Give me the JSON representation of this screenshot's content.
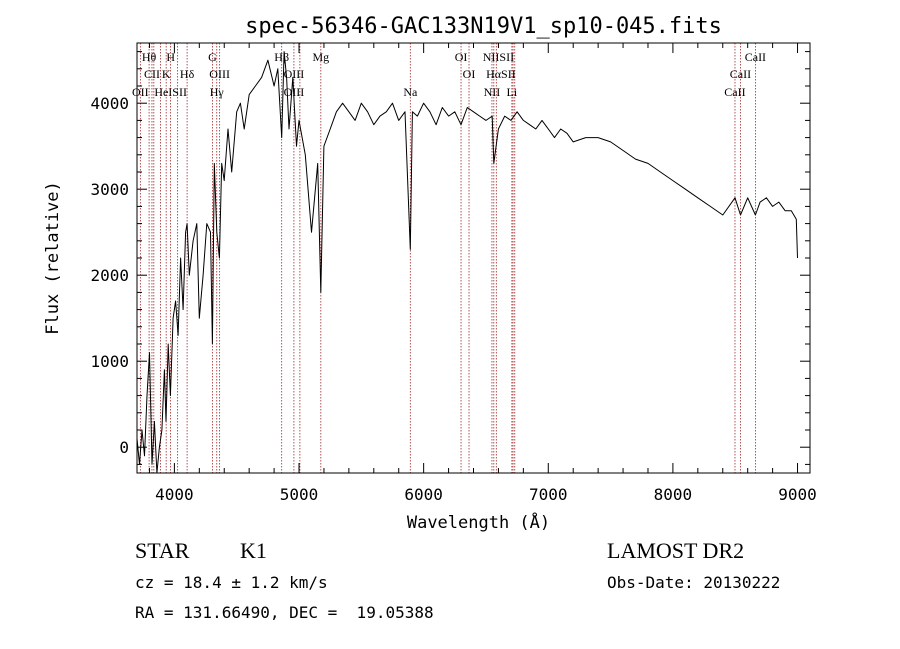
{
  "chart_data": {
    "type": "line",
    "title": "spec-56346-GAC133N19V1_sp10-045.fits",
    "xlabel": "Wavelength (Å)",
    "ylabel": "Flux (relative)",
    "xlim": [
      3700,
      9100
    ],
    "ylim": [
      -300,
      4700
    ],
    "x_ticks": [
      4000,
      5000,
      6000,
      7000,
      8000,
      9000
    ],
    "y_ticks": [
      0,
      1000,
      2000,
      3000,
      4000
    ],
    "grid": false,
    "series": [
      {
        "x": [
          3700,
          3720,
          3740,
          3760,
          3780,
          3800,
          3820,
          3840,
          3860,
          3880,
          3900,
          3920,
          3933,
          3950,
          3968,
          3990,
          4010,
          4030,
          4050,
          4070,
          4090,
          4102,
          4120,
          4150,
          4180,
          4200,
          4230,
          4260,
          4290,
          4305,
          4320,
          4340,
          4361,
          4380,
          4400,
          4430,
          4460,
          4500,
          4530,
          4560,
          4600,
          4650,
          4700,
          4750,
          4800,
          4830,
          4861,
          4880,
          4900,
          4920,
          4950,
          4980,
          5000,
          5050,
          5100,
          5150,
          5175,
          5200,
          5250,
          5300,
          5350,
          5400,
          5450,
          5500,
          5550,
          5600,
          5650,
          5700,
          5750,
          5800,
          5850,
          5893,
          5910,
          5950,
          6000,
          6050,
          6100,
          6150,
          6200,
          6250,
          6300,
          6350,
          6400,
          6450,
          6500,
          6550,
          6563,
          6600,
          6650,
          6700,
          6750,
          6800,
          6850,
          6900,
          6950,
          7000,
          7050,
          7100,
          7150,
          7200,
          7300,
          7400,
          7500,
          7600,
          7700,
          7800,
          7900,
          8000,
          8100,
          8200,
          8300,
          8400,
          8498,
          8542,
          8600,
          8662,
          8700,
          8750,
          8800,
          8850,
          8900,
          8950,
          8990,
          9000
        ],
        "y": [
          100,
          -200,
          200,
          -100,
          600,
          1100,
          -200,
          300,
          -300,
          0,
          200,
          900,
          300,
          1200,
          600,
          1500,
          1700,
          1300,
          2200,
          1600,
          2500,
          2600,
          2000,
          2400,
          2600,
          1500,
          2000,
          2600,
          2500,
          1200,
          3300,
          2500,
          2200,
          3300,
          3100,
          3700,
          3200,
          3900,
          4000,
          3700,
          4100,
          4200,
          4300,
          4500,
          4200,
          4400,
          3600,
          4600,
          4300,
          3700,
          4300,
          3500,
          3800,
          3400,
          2500,
          3300,
          1800,
          3500,
          3700,
          3900,
          4000,
          3900,
          3800,
          4000,
          3900,
          3750,
          3850,
          3900,
          4000,
          3800,
          3900,
          2300,
          3900,
          3850,
          4000,
          3900,
          3750,
          3950,
          3850,
          3900,
          3750,
          3950,
          3900,
          3850,
          3800,
          3850,
          3300,
          3700,
          3850,
          3800,
          3900,
          3800,
          3750,
          3700,
          3800,
          3700,
          3600,
          3700,
          3650,
          3550,
          3600,
          3600,
          3550,
          3450,
          3350,
          3300,
          3200,
          3100,
          3000,
          2900,
          2800,
          2700,
          2900,
          2700,
          2900,
          2700,
          2850,
          2900,
          2800,
          2850,
          2750,
          2750,
          2650,
          2200
        ]
      }
    ],
    "lines": [
      "Hθ",
      "H",
      "Hδ",
      "G",
      "Hβ",
      "Mg",
      "OI",
      "NII",
      "SII",
      "CaII",
      "CII",
      "K",
      "OIII",
      "OI",
      "Hα",
      "SII",
      "CaII",
      "OII",
      "HeI",
      "SII",
      "Hγ",
      "OIII",
      "Na",
      "NII",
      "Li",
      "CaII"
    ],
    "annotations": [
      {
        "text": "Hθ",
        "x": 3797,
        "row": 1
      },
      {
        "text": "H",
        "x": 3970,
        "row": 1
      },
      {
        "text": "G",
        "x": 4305,
        "row": 1
      },
      {
        "text": "Hβ",
        "x": 4861,
        "row": 1
      },
      {
        "text": "Mg",
        "x": 5175,
        "row": 1
      },
      {
        "text": "OI",
        "x": 6300,
        "row": 1
      },
      {
        "text": "NIISII",
        "x": 6600,
        "row": 1
      },
      {
        "text": "CaII",
        "x": 8662,
        "row": 1
      },
      {
        "text": "CII",
        "x": 3820,
        "row": 2
      },
      {
        "text": "K",
        "x": 3934,
        "row": 2
      },
      {
        "text": "Hδ",
        "x": 4102,
        "row": 2
      },
      {
        "text": "OIII",
        "x": 4363,
        "row": 2
      },
      {
        "text": "OIII",
        "x": 4959,
        "row": 2
      },
      {
        "text": "OI",
        "x": 6364,
        "row": 2
      },
      {
        "text": "HαSII",
        "x": 6620,
        "row": 2
      },
      {
        "text": "CaII",
        "x": 8542,
        "row": 2
      },
      {
        "text": "OII",
        "x": 3727,
        "row": 3
      },
      {
        "text": "HeISII",
        "x": 3970,
        "row": 3
      },
      {
        "text": "Hγ",
        "x": 4340,
        "row": 3
      },
      {
        "text": "OIII",
        "x": 4959,
        "row": 3
      },
      {
        "text": "Na",
        "x": 5893,
        "row": 3
      },
      {
        "text": "NII",
        "x": 6548,
        "row": 3
      },
      {
        "text": "Li",
        "x": 6708,
        "row": 3
      },
      {
        "text": "CaII",
        "x": 8498,
        "row": 3
      }
    ],
    "ref_lines": [
      3727,
      3797,
      3820,
      3835,
      3889,
      3934,
      3968,
      4026,
      4102,
      4305,
      4340,
      4363,
      4861,
      4959,
      5007,
      5175,
      5893,
      6300,
      6364,
      6548,
      6563,
      6583,
      6708,
      6717,
      6731,
      8498,
      8542,
      8662
    ]
  },
  "info": {
    "object_class": "STAR",
    "subclass": "K1",
    "cz": "cz = 18.4 ± 1.2 km/s",
    "radec": "RA = 131.66490, DEC =  19.05388",
    "survey": "LAMOST DR2",
    "obs_date": "Obs-Date: 20130222"
  }
}
